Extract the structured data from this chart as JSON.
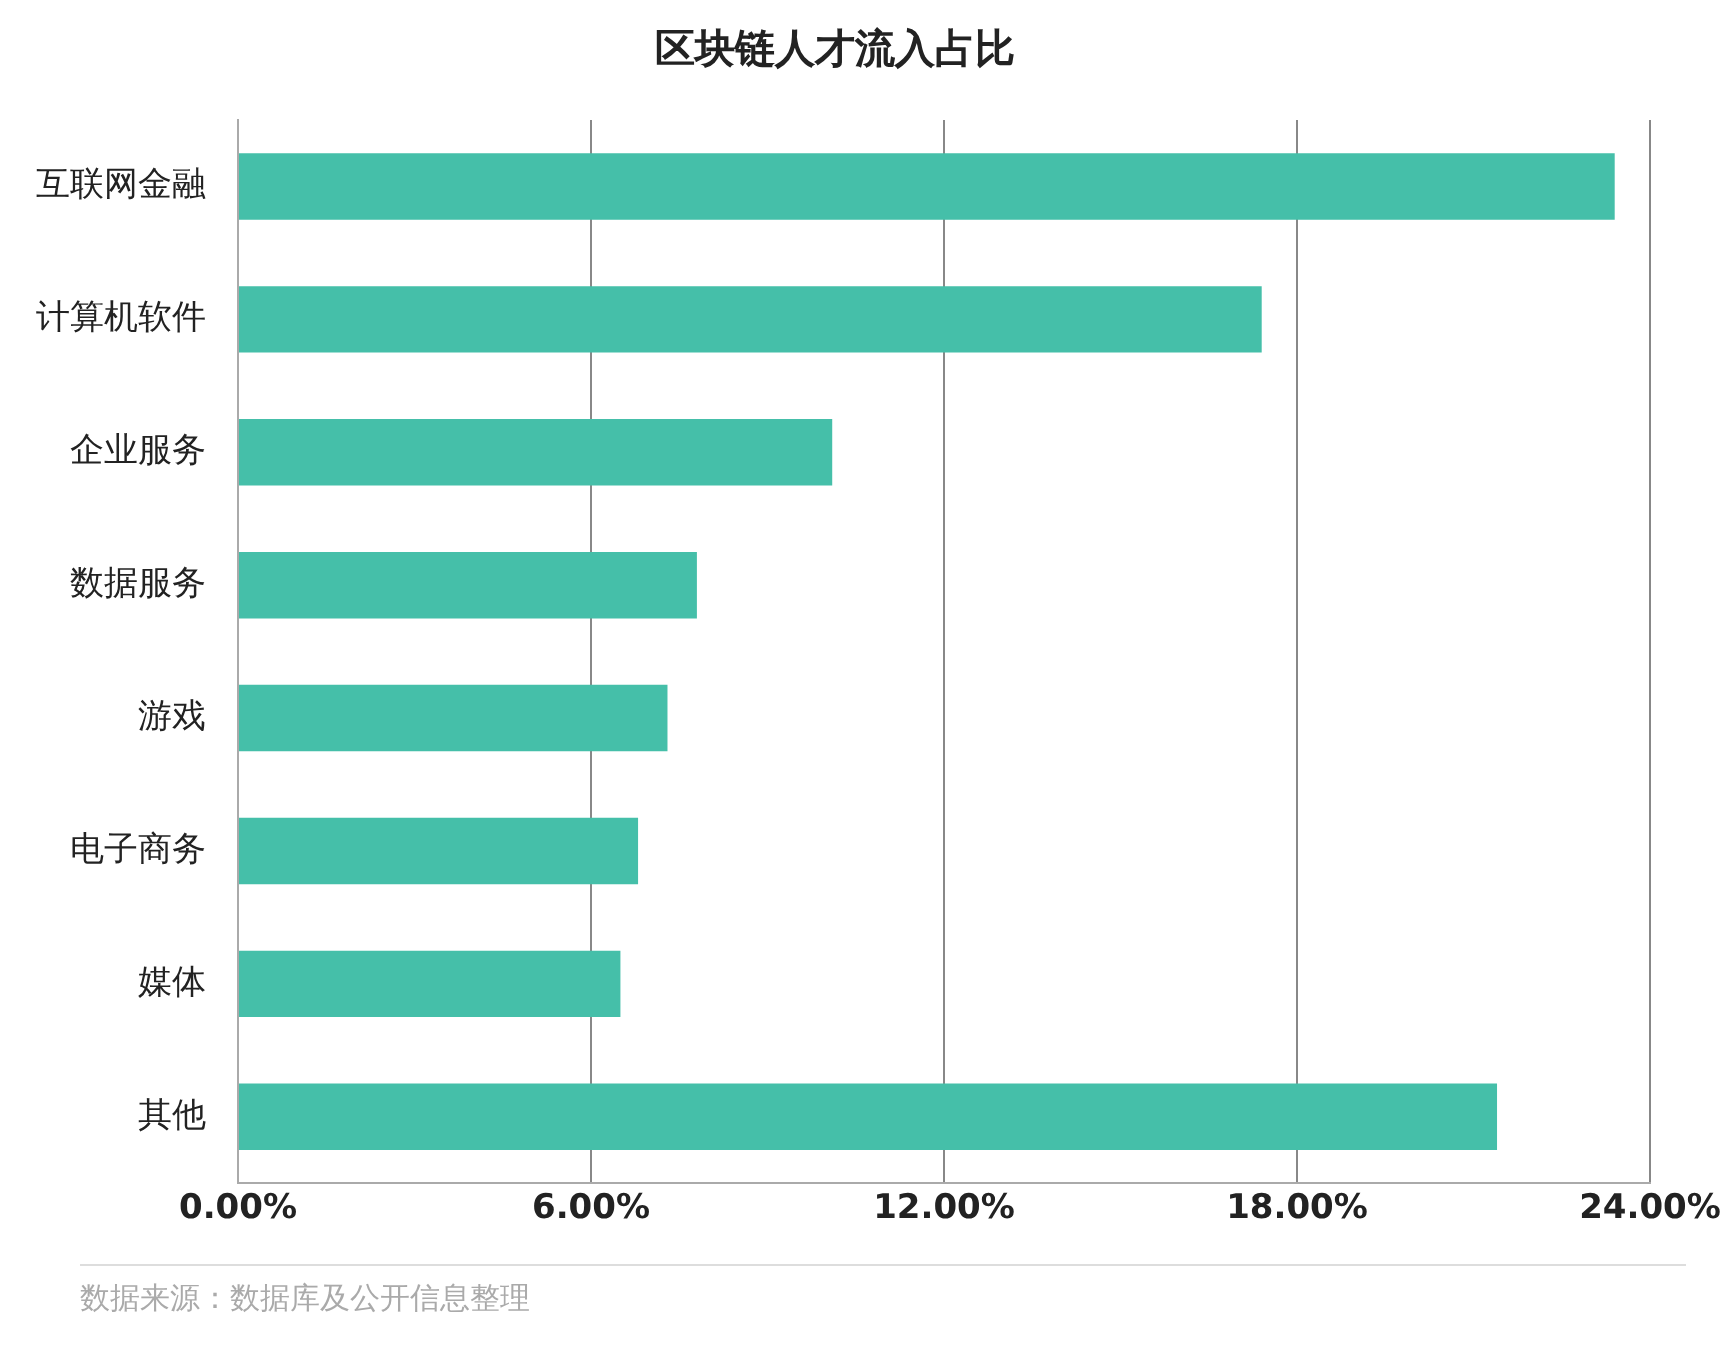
{
  "chart_data": {
    "type": "bar",
    "orientation": "horizontal",
    "title": "区块链人才流入占比",
    "categories": [
      "互联网金融",
      "计算机软件",
      "企业服务",
      "数据服务",
      "游戏",
      "电子商务",
      "媒体",
      "其他"
    ],
    "values": [
      23.4,
      17.4,
      10.1,
      7.8,
      7.3,
      6.8,
      6.5,
      21.4
    ],
    "color": "#45bfa9",
    "xlim": [
      0,
      24
    ],
    "xticks": [
      {
        "value": 0,
        "label": "0.00%"
      },
      {
        "value": 6,
        "label": "6.00%"
      },
      {
        "value": 12,
        "label": "12.00%"
      },
      {
        "value": 18,
        "label": "18.00%"
      },
      {
        "value": 24,
        "label": "24.00%"
      }
    ],
    "grid": "x",
    "legend": false,
    "annotations": [
      "数据来源：数据库及公开信息整理"
    ]
  }
}
